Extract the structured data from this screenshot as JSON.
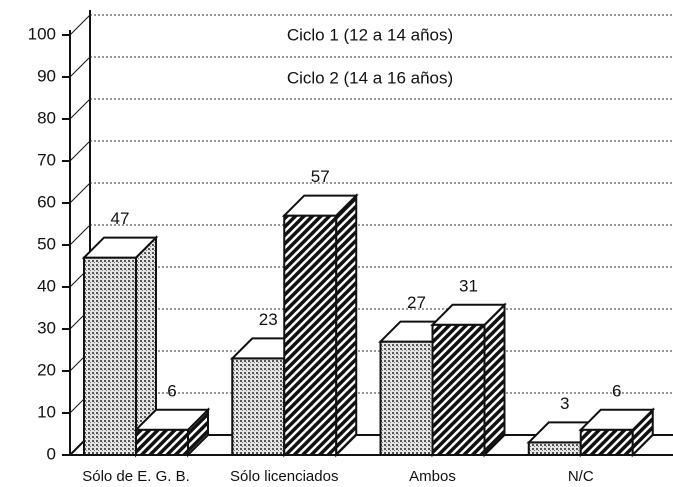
{
  "chart_data": {
    "type": "bar3d",
    "categories": [
      "Sólo de E. G. B.",
      "Sólo licenciados",
      "Ambos",
      "N/C"
    ],
    "series": [
      {
        "name": "Ciclo 1 (12 a 14 años)",
        "color": "#888888",
        "pattern": "dots",
        "values": [
          47,
          23,
          27,
          3
        ]
      },
      {
        "name": "Ciclo 2 (14 a 16 años)",
        "color": "#222222",
        "pattern": "hatch",
        "values": [
          6,
          57,
          31,
          6
        ]
      }
    ],
    "ylim": [
      0,
      100
    ],
    "yticks": [
      0,
      10,
      20,
      30,
      40,
      50,
      60,
      70,
      80,
      90,
      100
    ],
    "grid": true
  }
}
